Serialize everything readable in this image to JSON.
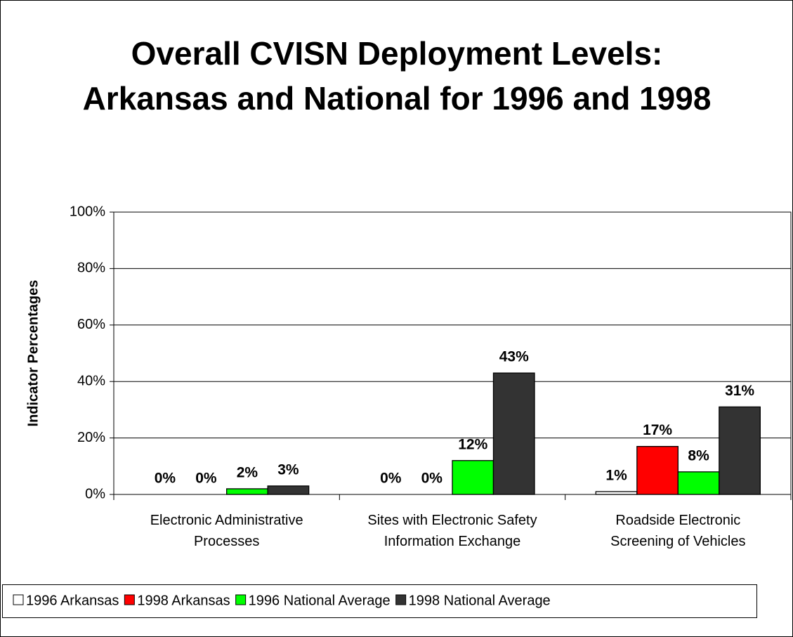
{
  "chart_data": {
    "type": "bar",
    "title": "Overall CVISN Deployment Levels: Arkansas and National for 1996 and 1998",
    "ylabel": "Indicator Percentages",
    "categories": [
      "Electronic Administrative Processes",
      "Sites with Electronic Safety Information Exchange",
      "Roadside Electronic Screening of Vehicles"
    ],
    "series": [
      {
        "name": "1996 Arkansas",
        "color": "#ffffff",
        "values": [
          0,
          0,
          1
        ],
        "value_labels": [
          "0%",
          "0%",
          "1%"
        ]
      },
      {
        "name": "1998 Arkansas",
        "color": "#ff0000",
        "values": [
          0,
          0,
          17
        ],
        "value_labels": [
          "0%",
          "0%",
          "17%"
        ]
      },
      {
        "name": "1996 National Average",
        "color": "#00ff00",
        "values": [
          2,
          12,
          8
        ],
        "value_labels": [
          "2%",
          "12%",
          "8%"
        ]
      },
      {
        "name": "1998 National Average",
        "color": "#333333",
        "values": [
          3,
          43,
          31
        ],
        "value_labels": [
          "3%",
          "43%",
          "31%"
        ]
      }
    ],
    "ylim": [
      0,
      100
    ],
    "yticks": [
      {
        "value": 0,
        "label": "0%"
      },
      {
        "value": 20,
        "label": "20%"
      },
      {
        "value": 40,
        "label": "40%"
      },
      {
        "value": 60,
        "label": "60%"
      },
      {
        "value": 80,
        "label": "80%"
      },
      {
        "value": 100,
        "label": "100%"
      }
    ],
    "grid": true,
    "legend": "bottom"
  }
}
